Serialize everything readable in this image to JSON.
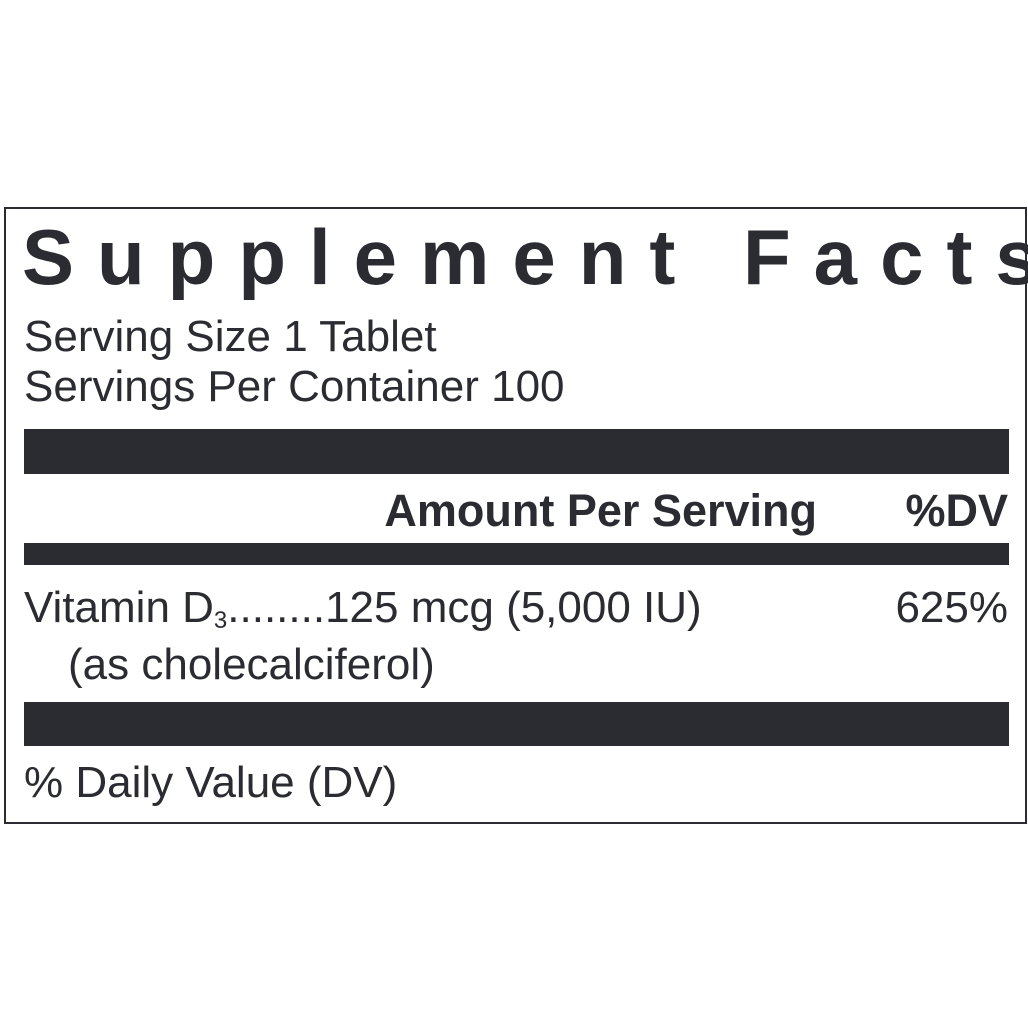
{
  "title": "Supplement Facts",
  "serving_size": "Serving Size 1 Tablet",
  "servings_per_container": "Servings Per Container 100",
  "header": {
    "amount": "Amount Per Serving",
    "dv": "%DV"
  },
  "nutrient": {
    "name": "Vitamin D",
    "subscript": "3",
    "amount": "........125 mcg (5,000 IU)",
    "form": "(as cholecalciferol)",
    "dv": "625%"
  },
  "footnote": "% Daily Value (DV)",
  "colors": {
    "ink": "#2b2c32",
    "background": "#ffffff"
  }
}
